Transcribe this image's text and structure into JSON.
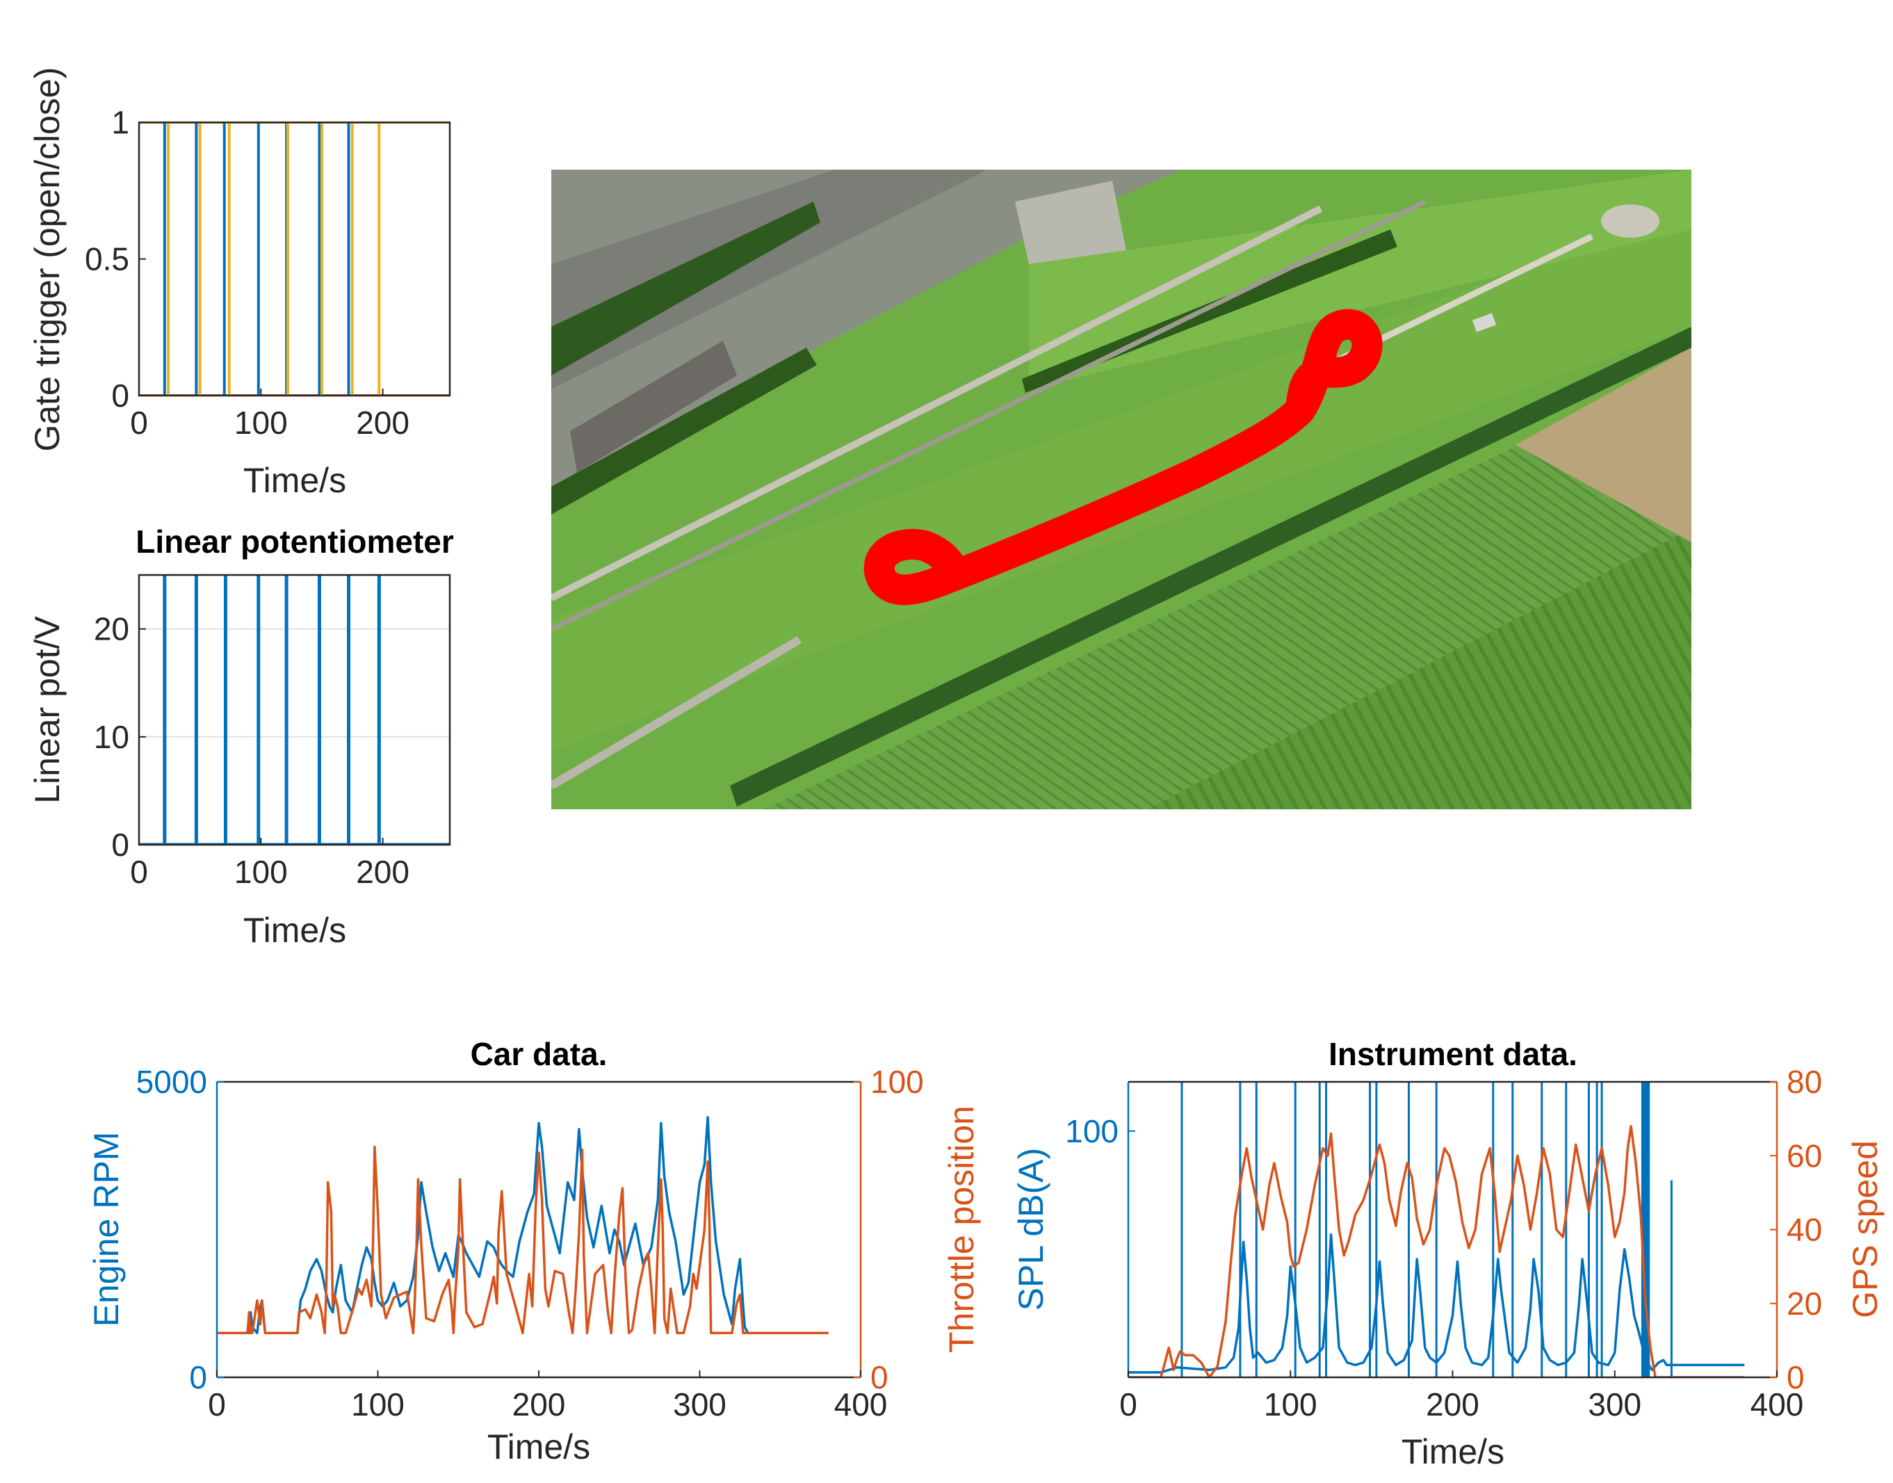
{
  "colors": {
    "matlab_blue": "#0072BD",
    "matlab_orange": "#D95319",
    "matlab_yellow": "#EDB120",
    "route_red": "#FF0000",
    "axis": "#262626",
    "grid": "#E0E0E0"
  },
  "map": {
    "description_icon": "aerial-map-image",
    "route_color": "#FF0000"
  },
  "chart_data": [
    {
      "id": "gate",
      "type": "line",
      "title": "",
      "xlabel": "Time/s",
      "ylabel": "Gate trigger (open/close)",
      "xlim": [
        0,
        255
      ],
      "ylim": [
        0,
        1
      ],
      "xticks": [
        "0",
        "100",
        "200"
      ],
      "xtick_values": [
        0,
        100,
        200
      ],
      "yticks": [
        "0",
        "0.5",
        "1"
      ],
      "ytick_values": [
        0,
        0.5,
        1
      ],
      "grid": false,
      "series": [
        {
          "color": "#0072BD",
          "pulse_times": [
            21,
            47,
            70,
            98,
            121,
            148,
            172
          ]
        },
        {
          "color": "#EDB120",
          "pulse_times": [
            24,
            50,
            74,
            122,
            150,
            175,
            197
          ]
        },
        {
          "color": "#D95319",
          "baseline": 0
        }
      ]
    },
    {
      "id": "linpot",
      "type": "line",
      "title": "Linear potentiometer",
      "xlabel": "Time/s",
      "ylabel": "Linear pot/V",
      "xlim": [
        0,
        255
      ],
      "ylim": [
        0,
        25
      ],
      "xticks": [
        "0",
        "100",
        "200"
      ],
      "xtick_values": [
        0,
        100,
        200
      ],
      "yticks": [
        "0",
        "10",
        "20"
      ],
      "ytick_values": [
        0,
        10,
        20
      ],
      "grid": true,
      "series": [
        {
          "color": "#0072BD",
          "pulse_times": [
            21,
            47,
            71,
            98,
            121,
            148,
            172,
            197
          ],
          "pulse_height": 25
        }
      ]
    },
    {
      "id": "car",
      "type": "line",
      "title": "Car data.",
      "xlabel": "Time/s",
      "ylabel_left": "Engine RPM",
      "ylabel_right": "Throttle position",
      "xlim": [
        0,
        400
      ],
      "ylim_left": [
        0,
        5000
      ],
      "ylim_right": [
        0,
        100
      ],
      "xticks": [
        "0",
        "100",
        "200",
        "300",
        "400"
      ],
      "xtick_values": [
        0,
        100,
        200,
        300,
        400
      ],
      "yticks_left": [
        "0",
        "5000"
      ],
      "ytick_values_left": [
        0,
        5000
      ],
      "yticks_right": [
        "0",
        "100"
      ],
      "ytick_values_right": [
        0,
        100
      ],
      "grid": false,
      "series": [
        {
          "axis": "left",
          "color": "#0072BD",
          "x": [
            0,
            20,
            21,
            22,
            25,
            27,
            28,
            30,
            50,
            52,
            55,
            58,
            60,
            62,
            65,
            68,
            70,
            72,
            74,
            77,
            80,
            84,
            87,
            90,
            93,
            96,
            98,
            100,
            103,
            106,
            110,
            114,
            118,
            122,
            125,
            127,
            130,
            134,
            138,
            142,
            147,
            150,
            152,
            155,
            159,
            163,
            168,
            172,
            175,
            177,
            180,
            184,
            188,
            193,
            197,
            200,
            202,
            205,
            209,
            213,
            218,
            222,
            225,
            227,
            230,
            234,
            239,
            244,
            247,
            250,
            253,
            256,
            260,
            265,
            270,
            274,
            276,
            278,
            281,
            285,
            290,
            293,
            297,
            300,
            303,
            305,
            307,
            310,
            315,
            320,
            322,
            325,
            327,
            328,
            330,
            340,
            380
          ],
          "y": [
            750,
            750,
            1100,
            850,
            750,
            1200,
            1300,
            750,
            750,
            1300,
            1500,
            1800,
            1900,
            2000,
            1800,
            1400,
            1200,
            1100,
            1500,
            1900,
            1300,
            1100,
            1500,
            1900,
            2200,
            2000,
            1600,
            1300,
            1200,
            1300,
            1600,
            1200,
            1300,
            1700,
            2400,
            3300,
            2800,
            2200,
            1800,
            2100,
            1700,
            2400,
            2300,
            2100,
            1900,
            1700,
            2300,
            2200,
            2000,
            1900,
            1800,
            1700,
            2300,
            2800,
            3100,
            4300,
            3900,
            2900,
            2500,
            2100,
            3300,
            3000,
            4200,
            3500,
            2700,
            2200,
            2900,
            2100,
            2500,
            2300,
            1900,
            2200,
            2600,
            1900,
            2200,
            3000,
            4300,
            3400,
            2800,
            2300,
            1400,
            1600,
            2600,
            3300,
            3600,
            4400,
            3300,
            2300,
            1400,
            900,
            1500,
            2000,
            1200,
            850,
            750,
            750,
            750
          ]
        },
        {
          "axis": "right",
          "color": "#D95319",
          "x": [
            0,
            19,
            20,
            21,
            22,
            25,
            27,
            28,
            30,
            50,
            51,
            55,
            58,
            62,
            65,
            67,
            68,
            69,
            71,
            72,
            73,
            75,
            77,
            80,
            85,
            88,
            90,
            93,
            95,
            96,
            97,
            98,
            100,
            102,
            105,
            110,
            118,
            122,
            123,
            124,
            125,
            127,
            130,
            135,
            140,
            144,
            146,
            147,
            148,
            150,
            151,
            152,
            155,
            160,
            165,
            170,
            172,
            174,
            175,
            177,
            180,
            190,
            194,
            196,
            198,
            200,
            202,
            204,
            206,
            210,
            215,
            219,
            221,
            223,
            225,
            227,
            228,
            230,
            235,
            240,
            243,
            245,
            247,
            250,
            252,
            254,
            256,
            258,
            262,
            266,
            268,
            270,
            272,
            274,
            276,
            277,
            278,
            280,
            282,
            286,
            290,
            294,
            296,
            298,
            301,
            303,
            305,
            306,
            307,
            310,
            320,
            323,
            325,
            327,
            328,
            330,
            380
          ],
          "y": [
            15,
            15,
            22,
            15,
            15,
            26,
            18,
            26,
            15,
            15,
            22,
            23,
            20,
            28,
            22,
            15,
            30,
            66,
            56,
            24,
            28,
            24,
            15,
            15,
            24,
            30,
            28,
            33,
            27,
            24,
            46,
            78,
            56,
            28,
            20,
            27,
            29,
            15,
            26,
            44,
            67,
            45,
            20,
            19,
            28,
            33,
            23,
            15,
            27,
            43,
            67,
            55,
            22,
            17,
            18,
            29,
            34,
            25,
            49,
            63,
            35,
            15,
            35,
            24,
            57,
            76,
            60,
            30,
            24,
            36,
            35,
            21,
            15,
            30,
            49,
            77,
            41,
            15,
            35,
            38,
            22,
            15,
            33,
            55,
            64,
            33,
            15,
            16,
            30,
            40,
            42,
            30,
            15,
            44,
            67,
            50,
            20,
            15,
            30,
            15,
            15,
            24,
            35,
            30,
            42,
            50,
            73,
            53,
            15,
            15,
            15,
            25,
            28,
            15,
            15,
            15,
            15
          ]
        }
      ]
    },
    {
      "id": "instrument",
      "type": "line",
      "title": "Instrument data.",
      "xlabel": "Time/s",
      "ylabel_left": "SPL dB(A)",
      "ylabel_right": "GPS speed",
      "xlim": [
        0,
        400
      ],
      "ylim_left": [
        0,
        120
      ],
      "ylim_right": [
        0,
        80
      ],
      "xticks": [
        "0",
        "100",
        "200",
        "300",
        "400"
      ],
      "xtick_values": [
        0,
        100,
        200,
        300,
        400
      ],
      "yticks_left": [
        "100"
      ],
      "ytick_values_left": [
        100
      ],
      "yticks_right": [
        "0",
        "20",
        "40",
        "60",
        "80"
      ],
      "ytick_values_right": [
        0,
        20,
        40,
        60,
        80
      ],
      "grid": false,
      "series": [
        {
          "axis": "left",
          "color": "#0072BD",
          "x": [
            0,
            20,
            30,
            50,
            60,
            65,
            68,
            71,
            73,
            75,
            77,
            80,
            85,
            90,
            95,
            98,
            100,
            103,
            106,
            110,
            115,
            120,
            123,
            125,
            127,
            130,
            135,
            140,
            145,
            150,
            153,
            155,
            157,
            160,
            165,
            170,
            175,
            178,
            180,
            183,
            186,
            190,
            195,
            200,
            203,
            205,
            208,
            212,
            218,
            222,
            225,
            228,
            230,
            235,
            240,
            245,
            248,
            250,
            253,
            256,
            260,
            265,
            270,
            275,
            278,
            280,
            283,
            286,
            290,
            296,
            300,
            303,
            306,
            309,
            312,
            315,
            318,
            320,
            323,
            327,
            330,
            332,
            380
          ],
          "y": [
            2,
            2,
            4,
            3,
            4,
            8,
            20,
            55,
            40,
            20,
            8,
            10,
            6,
            7,
            12,
            25,
            45,
            30,
            12,
            6,
            8,
            12,
            35,
            58,
            40,
            12,
            6,
            5,
            6,
            12,
            30,
            47,
            30,
            10,
            5,
            7,
            15,
            48,
            35,
            12,
            8,
            6,
            10,
            25,
            47,
            30,
            12,
            6,
            5,
            8,
            25,
            48,
            35,
            10,
            6,
            12,
            28,
            48,
            35,
            12,
            7,
            5,
            6,
            10,
            30,
            48,
            30,
            10,
            6,
            5,
            10,
            35,
            52,
            40,
            25,
            18,
            10,
            6,
            3,
            6,
            7,
            5,
            5
          ]
        },
        {
          "axis": "left",
          "color": "#0072BD",
          "spikes": true,
          "x": [
            33,
            69,
            79,
            103,
            118,
            122,
            149,
            153,
            173,
            190,
            225,
            237,
            255,
            270,
            284,
            289,
            292,
            317,
            318,
            319,
            320,
            321,
            335
          ],
          "y": [
            120,
            120,
            120,
            120,
            120,
            120,
            120,
            120,
            120,
            120,
            120,
            120,
            120,
            120,
            120,
            120,
            120,
            120,
            120,
            120,
            120,
            120,
            80
          ]
        },
        {
          "axis": "right",
          "color": "#D95319",
          "x": [
            0,
            20,
            22,
            25,
            28,
            30,
            32,
            35,
            40,
            45,
            50,
            55,
            60,
            63,
            66,
            70,
            73,
            76,
            79,
            83,
            87,
            90,
            94,
            98,
            100,
            102,
            105,
            110,
            115,
            120,
            123,
            125,
            127,
            130,
            133,
            136,
            140,
            145,
            150,
            155,
            158,
            161,
            165,
            168,
            172,
            175,
            178,
            182,
            186,
            190,
            195,
            198,
            202,
            206,
            210,
            214,
            218,
            223,
            226,
            229,
            232,
            236,
            240,
            244,
            248,
            252,
            256,
            260,
            264,
            268,
            272,
            276,
            280,
            284,
            288,
            292,
            296,
            300,
            303,
            306,
            308,
            310,
            313,
            316,
            319,
            322,
            325,
            328,
            330,
            332,
            335,
            380
          ],
          "y": [
            0,
            0,
            3,
            8,
            2,
            5,
            7,
            6,
            6,
            4,
            0,
            3,
            15,
            30,
            44,
            55,
            62,
            54,
            48,
            40,
            52,
            58,
            49,
            42,
            33,
            30,
            31,
            40,
            52,
            62,
            60,
            66,
            55,
            40,
            33,
            37,
            44,
            48,
            55,
            63,
            58,
            48,
            41,
            50,
            58,
            54,
            43,
            36,
            40,
            52,
            62,
            60,
            53,
            42,
            35,
            40,
            55,
            62,
            50,
            34,
            40,
            48,
            60,
            52,
            40,
            50,
            62,
            55,
            40,
            38,
            50,
            63,
            54,
            45,
            55,
            62,
            52,
            38,
            42,
            50,
            62,
            68,
            58,
            44,
            20,
            8,
            0,
            0,
            0,
            0,
            0,
            0
          ]
        }
      ]
    }
  ]
}
